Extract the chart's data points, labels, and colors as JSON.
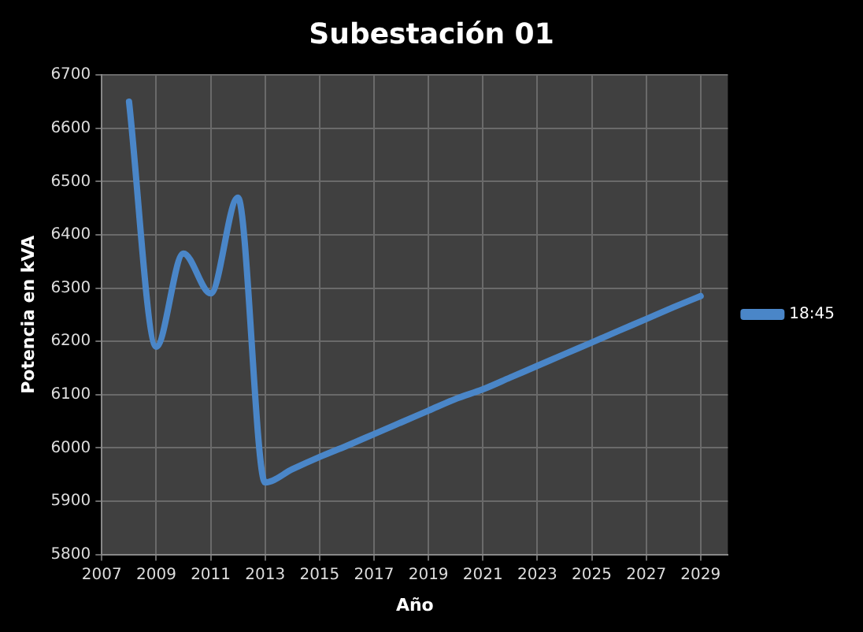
{
  "chart_data": {
    "type": "line",
    "title": "Subestación 01",
    "xlabel": "Año",
    "ylabel": "Potencia en kVA",
    "x": [
      2008,
      2009,
      2010,
      2011,
      2012,
      2013,
      2014,
      2015,
      2016,
      2017,
      2018,
      2019,
      2020,
      2021,
      2022,
      2023,
      2024,
      2025,
      2026,
      2027,
      2028,
      2029
    ],
    "series": [
      {
        "name": "18:45",
        "color": "#4a86c8",
        "values": [
          6650,
          6190,
          6365,
          6290,
          6470,
          5935,
          5960,
          5983,
          6004,
          6026,
          6048,
          6070,
          6092,
          6110,
          6132,
          6154,
          6176,
          6198,
          6220,
          6242,
          6264,
          6285
        ]
      }
    ],
    "xlim": [
      2007,
      2030
    ],
    "xticks": [
      2007,
      2009,
      2011,
      2013,
      2015,
      2017,
      2019,
      2021,
      2023,
      2025,
      2027,
      2029
    ],
    "ylim": [
      5800,
      6700
    ],
    "yticks": [
      5800,
      5900,
      6000,
      6100,
      6200,
      6300,
      6400,
      6500,
      6600,
      6700
    ],
    "grid": true,
    "legend": "right",
    "marker": "none",
    "line_style": "solid"
  }
}
